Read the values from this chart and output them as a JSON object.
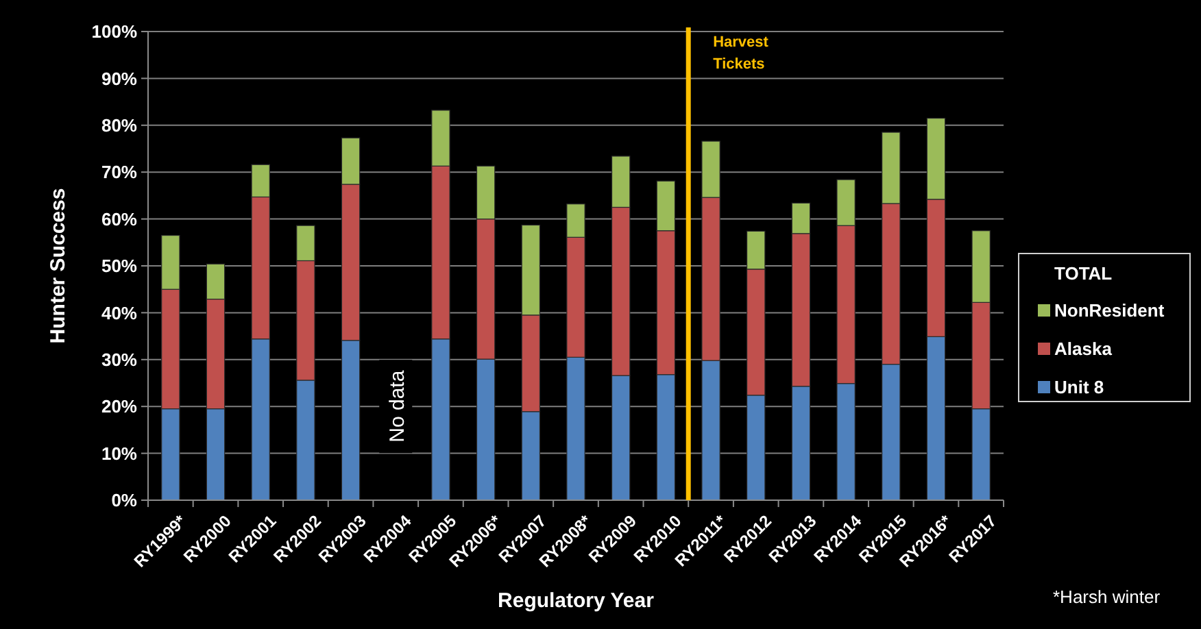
{
  "chart_data": {
    "type": "bar",
    "stacked": true,
    "xlabel": "Regulatory Year",
    "ylabel": "Hunter Success",
    "legend_title": "TOTAL",
    "legend": "right",
    "grid": "y",
    "categories": [
      "RY1999*",
      "RY2000",
      "RY2001",
      "RY2002",
      "RY2003",
      "RY2004",
      "RY2005",
      "RY2006*",
      "RY2007",
      "RY2008*",
      "RY2009",
      "RY2010",
      "RY2011*",
      "RY2012",
      "RY2013",
      "RY2014",
      "RY2015",
      "RY2016*",
      "RY2017"
    ],
    "series": [
      {
        "name": "Unit 8",
        "color": "#4f81bd",
        "values": [
          19.5,
          19.5,
          34.4,
          25.6,
          34.1,
          null,
          34.4,
          30.1,
          18.9,
          30.5,
          26.6,
          26.8,
          29.8,
          22.4,
          24.3,
          24.9,
          29.0,
          34.9,
          19.5
        ]
      },
      {
        "name": "Alaska",
        "color": "#c0504d",
        "values": [
          25.5,
          23.4,
          30.3,
          25.5,
          33.3,
          null,
          36.9,
          29.9,
          20.6,
          25.6,
          35.9,
          30.7,
          34.8,
          26.9,
          32.6,
          33.7,
          34.3,
          29.3,
          22.7
        ]
      },
      {
        "name": "NonResident",
        "color": "#9bbb59",
        "values": [
          11.5,
          7.5,
          6.9,
          7.5,
          9.9,
          null,
          11.9,
          11.3,
          19.2,
          7.1,
          10.9,
          10.6,
          12.0,
          8.1,
          6.5,
          9.8,
          15.2,
          17.3,
          15.3
        ]
      }
    ],
    "ylim": [
      0,
      100
    ],
    "yticks": [
      {
        "value": 0,
        "label": "0%"
      },
      {
        "value": 10,
        "label": "10%"
      },
      {
        "value": 20,
        "label": "20%"
      },
      {
        "value": 30,
        "label": "30%"
      },
      {
        "value": 40,
        "label": "40%"
      },
      {
        "value": 50,
        "label": "50%"
      },
      {
        "value": 60,
        "label": "60%"
      },
      {
        "value": 70,
        "label": "70%"
      },
      {
        "value": 80,
        "label": "80%"
      },
      {
        "value": 90,
        "label": "90%"
      },
      {
        "value": 100,
        "label": "100%"
      }
    ],
    "ref_lines": [
      {
        "axis": "x",
        "value": "RY2011*",
        "label": "Harvest Tickets",
        "color": "#ffc000"
      }
    ],
    "annotations": [
      "No data",
      "*Harsh winter"
    ]
  }
}
